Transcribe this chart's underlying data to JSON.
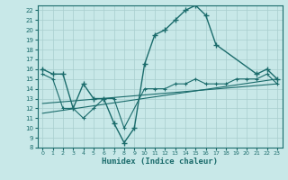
{
  "xlabel": "Humidex (Indice chaleur)",
  "background_color": "#c8e8e8",
  "grid_color": "#a8cece",
  "line_color": "#1a6b6b",
  "xlim": [
    -0.5,
    23.5
  ],
  "ylim": [
    8,
    22.5
  ],
  "yticks": [
    8,
    9,
    10,
    11,
    12,
    13,
    14,
    15,
    16,
    17,
    18,
    19,
    20,
    21,
    22
  ],
  "xticks": [
    0,
    1,
    2,
    3,
    4,
    5,
    6,
    7,
    8,
    9,
    10,
    11,
    12,
    13,
    14,
    15,
    16,
    17,
    18,
    19,
    20,
    21,
    22,
    23
  ],
  "series1_x": [
    0,
    1,
    2,
    3,
    4,
    5,
    6,
    7,
    8,
    9,
    10,
    11,
    12,
    13,
    14,
    15,
    16,
    17,
    21,
    22,
    23
  ],
  "series1_y": [
    16,
    15.5,
    15.5,
    12,
    14.5,
    13,
    13,
    10.5,
    8.5,
    10,
    16.5,
    19.5,
    20,
    21,
    22,
    22.5,
    21.5,
    18.5,
    15.5,
    16,
    15
  ],
  "series2_x": [
    0,
    1,
    2,
    3,
    4,
    5,
    6,
    7,
    8,
    10,
    11,
    12,
    13,
    14,
    15,
    16,
    17,
    18,
    19,
    20,
    21,
    22,
    23
  ],
  "series2_y": [
    15.5,
    15,
    12,
    12,
    11,
    12,
    13,
    13,
    10,
    14,
    14,
    14,
    14.5,
    14.5,
    15,
    14.5,
    14.5,
    14.5,
    15,
    15,
    15,
    15.5,
    14.5
  ],
  "series3_x": [
    0,
    23
  ],
  "series3_y": [
    11.5,
    15.0
  ],
  "series4_x": [
    0,
    23
  ],
  "series4_y": [
    12.5,
    14.5
  ]
}
